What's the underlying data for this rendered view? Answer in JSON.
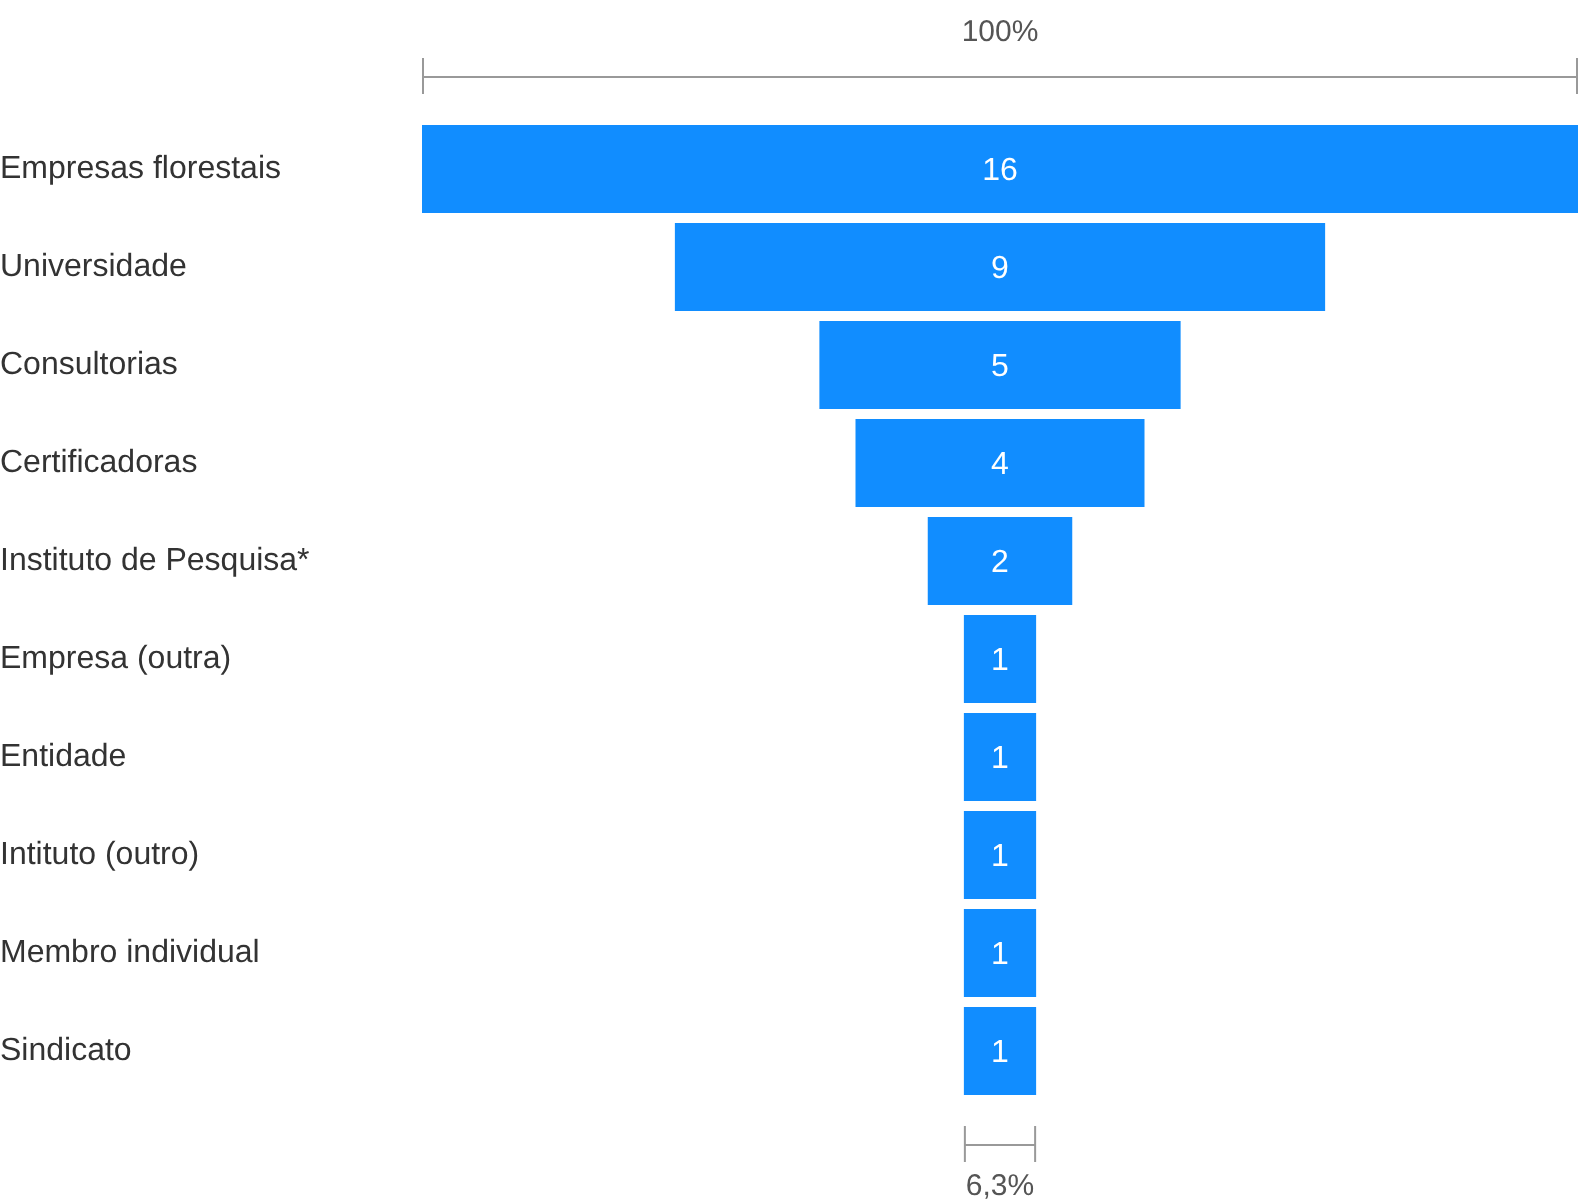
{
  "chart_data": {
    "type": "other",
    "categories": [
      "Empresas florestais",
      "Universidade",
      "Consultorias",
      "Certificadoras",
      "Instituto de Pesquisa*",
      "Empresa (outra)",
      "Entidade",
      "Intituto (outro)",
      "Membro individual",
      "Sindicato"
    ],
    "values": [
      16,
      9,
      5,
      4,
      2,
      1,
      1,
      1,
      1,
      1
    ],
    "color": "#118dff",
    "data_labels": true,
    "annotations": [
      "100%",
      "6,3%"
    ]
  }
}
